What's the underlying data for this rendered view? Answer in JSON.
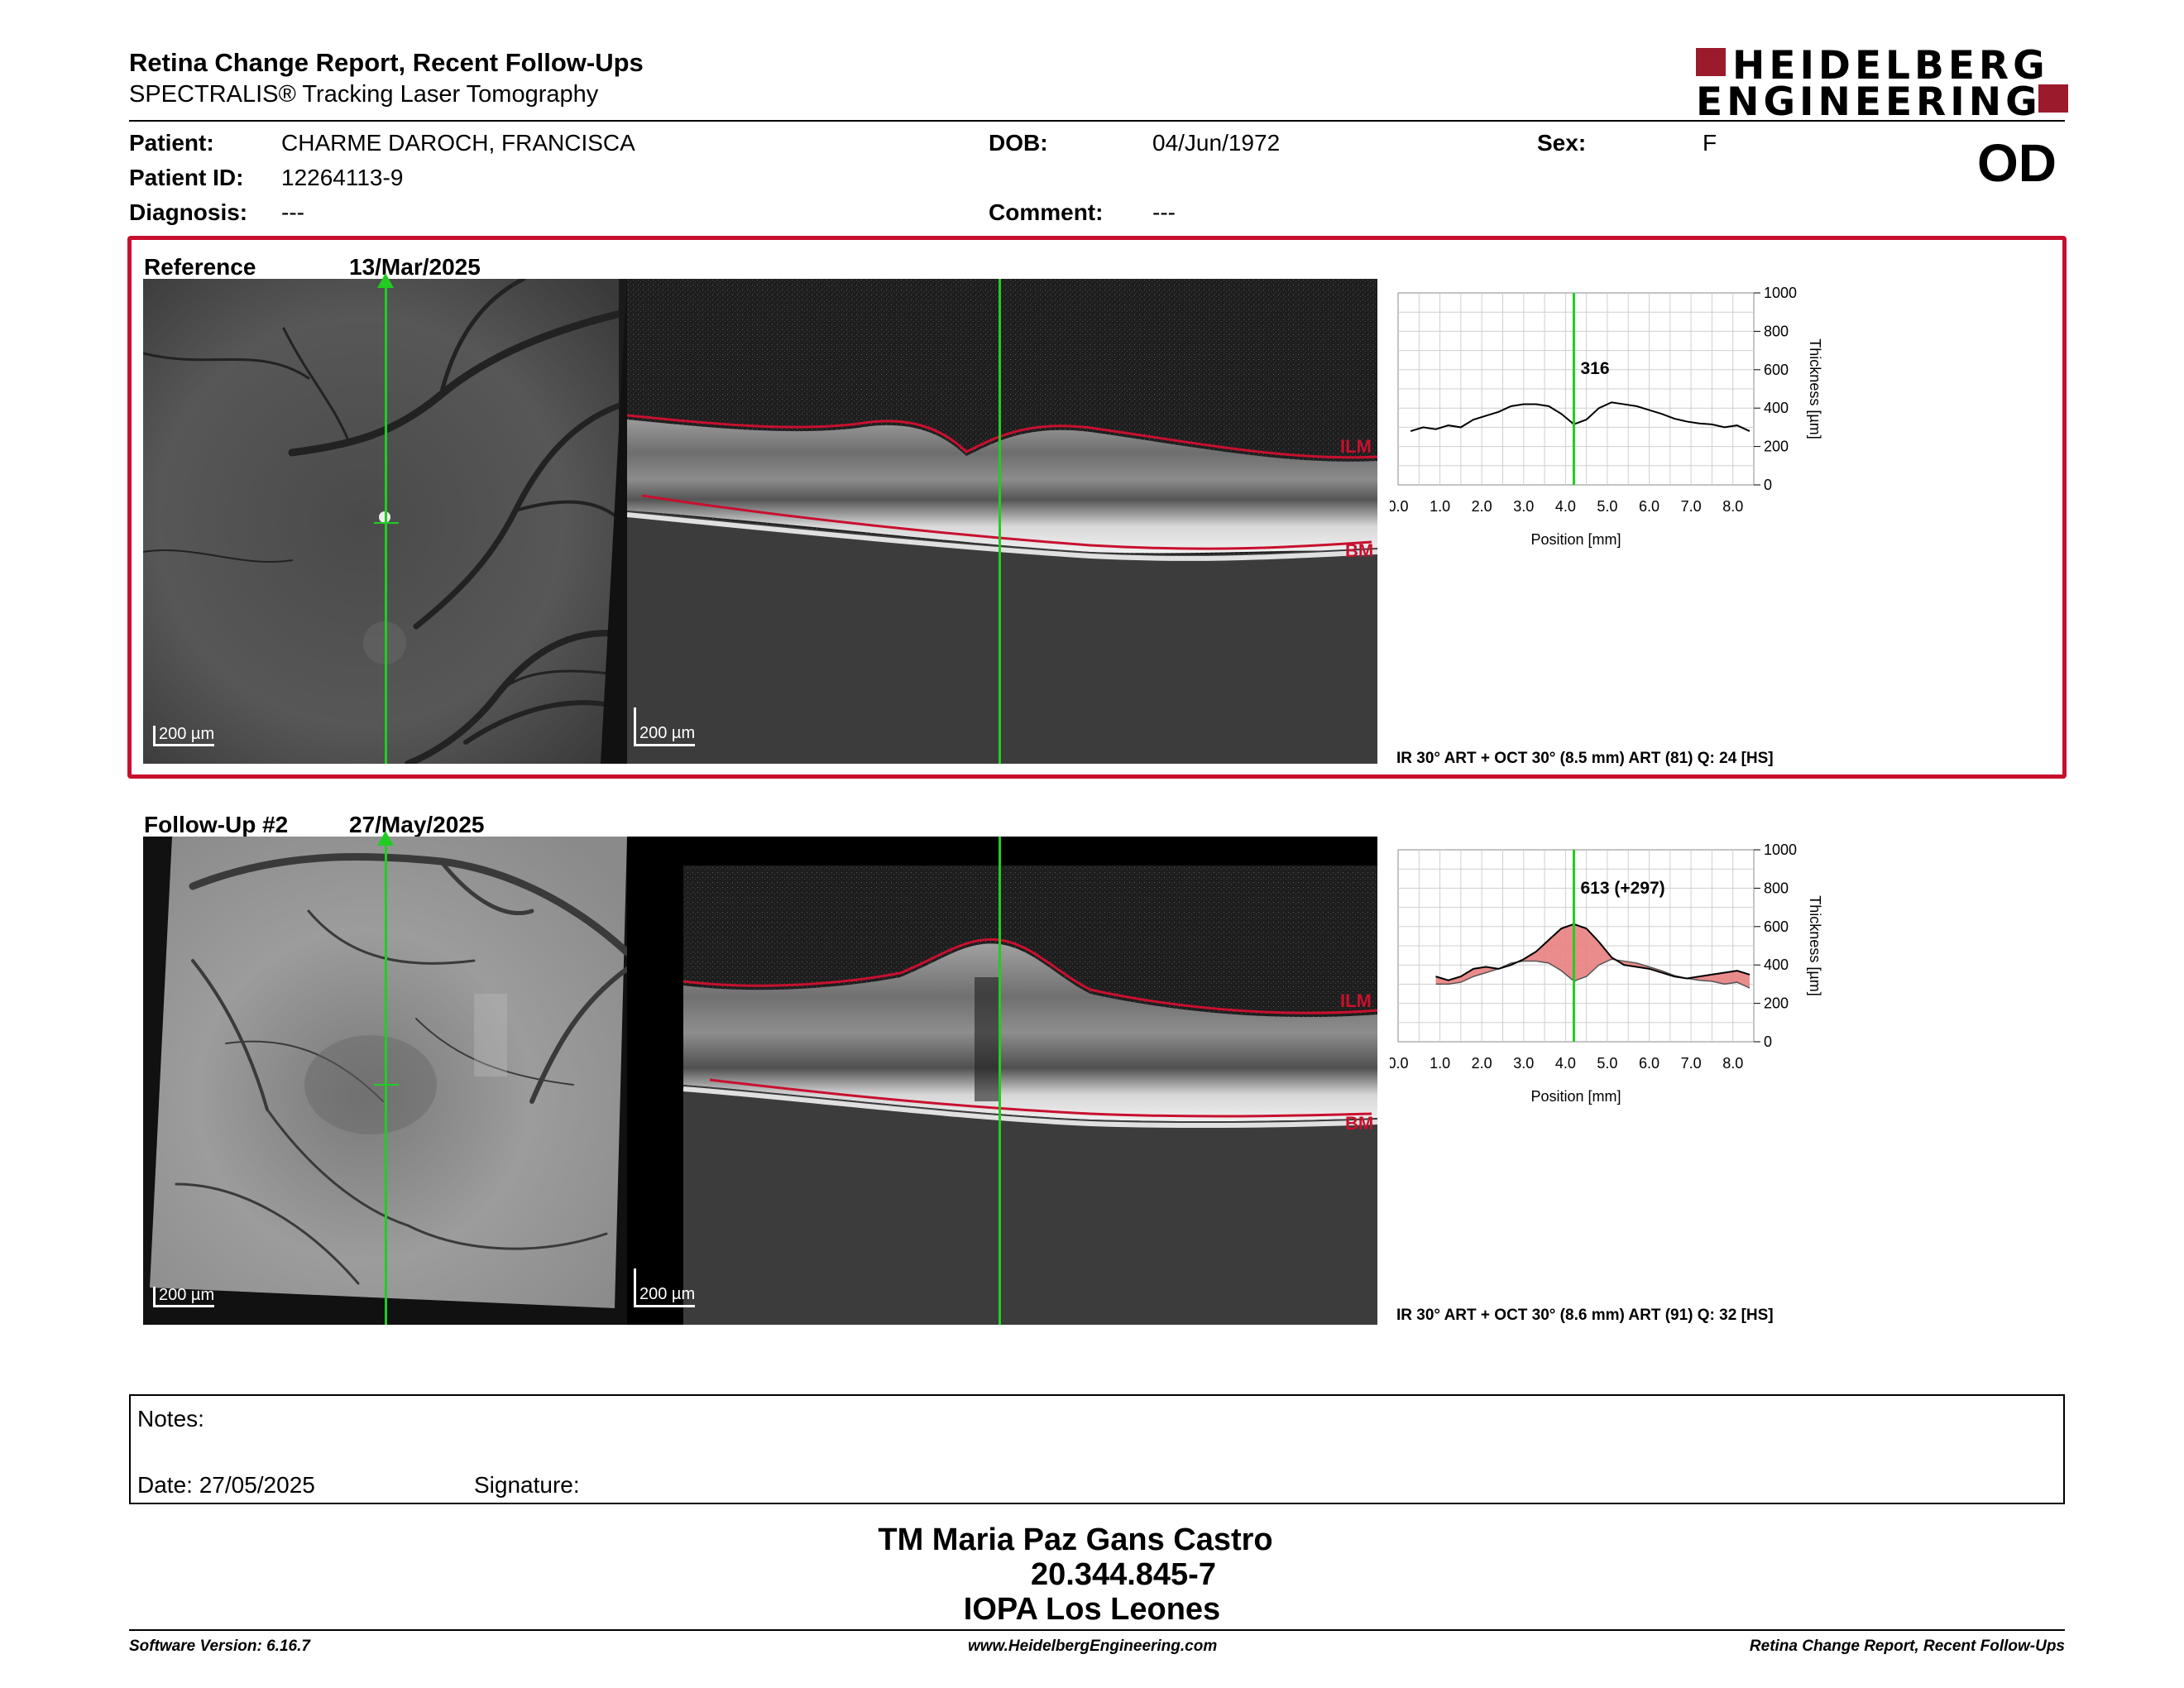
{
  "header": {
    "title": "Retina Change Report, Recent Follow-Ups",
    "subtitle": "SPECTRALIS® Tracking Laser Tomography",
    "logo_line1": "HEIDELBERG",
    "logo_line2": "ENGINEERING",
    "brand_color": "#9b1b2c"
  },
  "patient": {
    "patient_label": "Patient:",
    "patient_name": "CHARME DAROCH, FRANCISCA",
    "dob_label": "DOB:",
    "dob": "04/Jun/1972",
    "sex_label": "Sex:",
    "sex": "F",
    "id_label": "Patient ID:",
    "patient_id": "12264113-9",
    "diagnosis_label": "Diagnosis:",
    "diagnosis": "---",
    "comment_label": "Comment:",
    "comment": "---",
    "eye": "OD"
  },
  "scans": [
    {
      "label": "Reference",
      "date": "13/Mar/2025",
      "scale_fundus": "200 µm",
      "scale_oct": "200 µm",
      "layer_top": "ILM",
      "layer_bottom": "BM",
      "caption": "IR 30° ART + OCT 30° (8.5 mm) ART (81) Q: 24 [HS]",
      "highlight_color": "#c8102e"
    },
    {
      "label": "Follow-Up #2",
      "date": "27/May/2025",
      "scale_fundus": "200 µm",
      "scale_oct": "200 µm",
      "layer_top": "ILM",
      "layer_bottom": "BM",
      "caption": "IR 30° ART + OCT 30° (8.6 mm) ART (91) Q: 32 [HS]"
    }
  ],
  "chart_data": [
    {
      "type": "line",
      "xlabel": "Position [mm]",
      "ylabel": "Thickness [µm]",
      "xlim": [
        0.0,
        8.5
      ],
      "ylim": [
        0,
        1000
      ],
      "x_ticks": [
        "0.0",
        "1.0",
        "2.0",
        "3.0",
        "4.0",
        "5.0",
        "6.0",
        "7.0",
        "8.0"
      ],
      "y_ticks": [
        "0",
        "200",
        "400",
        "600",
        "800",
        "1000"
      ],
      "grid": true,
      "cursor_x": 4.2,
      "cursor_label": "316",
      "cursor_color": "#22cc22",
      "x": [
        0.3,
        0.6,
        0.9,
        1.2,
        1.5,
        1.8,
        2.1,
        2.4,
        2.7,
        3.0,
        3.3,
        3.6,
        3.9,
        4.2,
        4.5,
        4.8,
        5.1,
        5.4,
        5.7,
        6.0,
        6.3,
        6.6,
        6.9,
        7.2,
        7.5,
        7.8,
        8.1,
        8.4
      ],
      "values": [
        280,
        300,
        290,
        310,
        300,
        340,
        360,
        380,
        410,
        420,
        420,
        410,
        370,
        316,
        340,
        400,
        430,
        420,
        410,
        390,
        370,
        345,
        330,
        320,
        315,
        300,
        310,
        280
      ]
    },
    {
      "type": "area",
      "xlabel": "Position [mm]",
      "ylabel": "Thickness [µm]",
      "xlim": [
        0.0,
        8.5
      ],
      "ylim": [
        0,
        1000
      ],
      "x_ticks": [
        "0.0",
        "1.0",
        "2.0",
        "3.0",
        "4.0",
        "5.0",
        "6.0",
        "7.0",
        "8.0"
      ],
      "y_ticks": [
        "0",
        "200",
        "400",
        "600",
        "800",
        "1000"
      ],
      "grid": true,
      "cursor_x": 4.2,
      "cursor_label": "613 (+297)",
      "cursor_color": "#22cc22",
      "fill_color": "#e88080",
      "x": [
        0.9,
        1.2,
        1.5,
        1.8,
        2.1,
        2.4,
        2.7,
        3.0,
        3.3,
        3.6,
        3.9,
        4.2,
        4.5,
        4.8,
        5.1,
        5.4,
        5.7,
        6.0,
        6.3,
        6.6,
        6.9,
        7.2,
        7.5,
        7.8,
        8.1,
        8.4
      ],
      "series": [
        {
          "values": [
            340,
            320,
            340,
            380,
            390,
            380,
            400,
            430,
            470,
            530,
            590,
            613,
            590,
            520,
            440,
            400,
            390,
            380,
            360,
            340,
            330,
            340,
            350,
            360,
            370,
            350
          ]
        },
        {
          "values": [
            300,
            300,
            310,
            340,
            360,
            380,
            410,
            420,
            420,
            410,
            370,
            316,
            340,
            400,
            430,
            420,
            410,
            390,
            370,
            345,
            330,
            320,
            315,
            300,
            310,
            280
          ]
        }
      ]
    }
  ],
  "notes": {
    "notes_label": "Notes:",
    "date_text": "Date: 27/05/2025",
    "signature_label": "Signature:"
  },
  "signature_block": {
    "name": "TM Maria Paz Gans Castro",
    "id": "20.344.845-7",
    "org": "IOPA Los Leones"
  },
  "footer": {
    "left": "Software Version: 6.16.7",
    "center": "www.HeidelbergEngineering.com",
    "right": "Retina Change Report, Recent Follow-Ups"
  }
}
